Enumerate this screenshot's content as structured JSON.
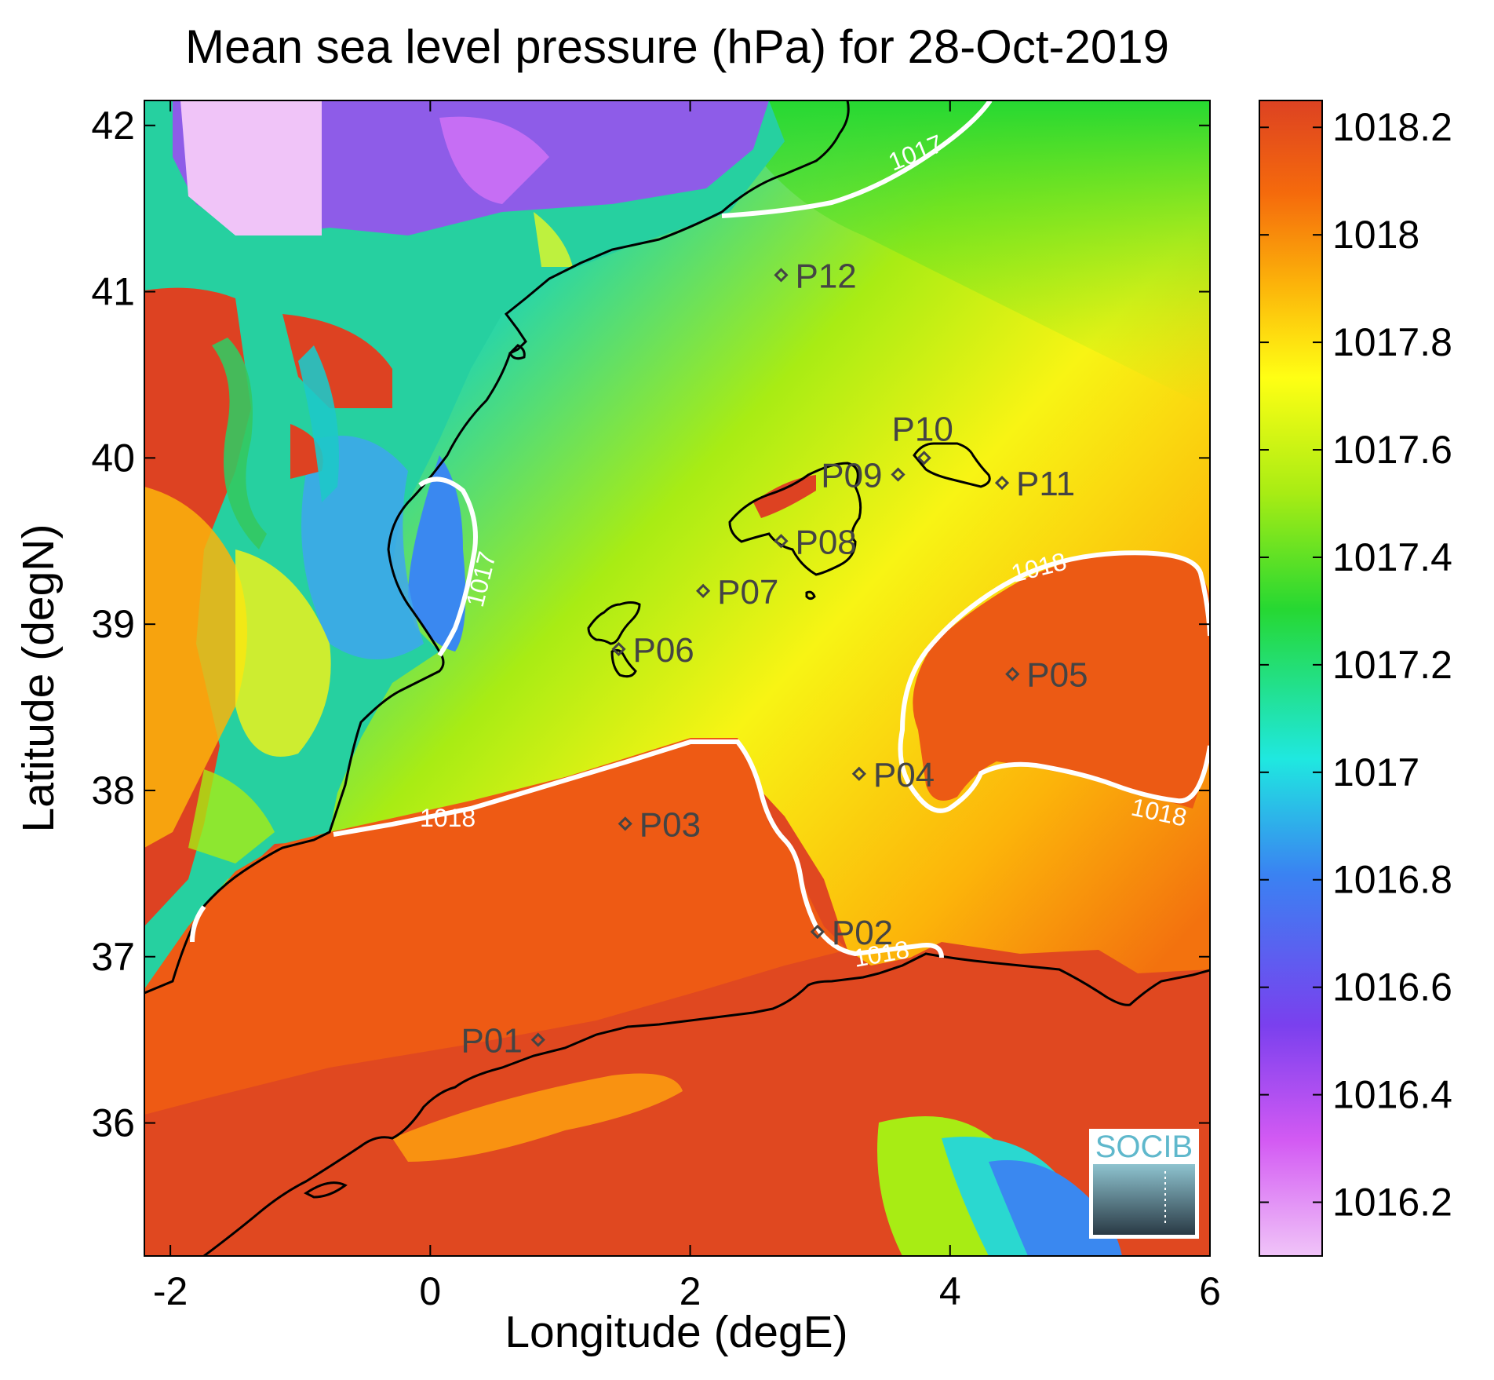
{
  "title": "Mean sea level pressure (hPa) for 28-Oct-2019",
  "xlabel": "Longitude (degE)",
  "ylabel": "Latitude (degN)",
  "x_ticks": [
    "-2",
    "0",
    "2",
    "4",
    "6"
  ],
  "y_ticks": [
    "36",
    "37",
    "38",
    "39",
    "40",
    "41",
    "42"
  ],
  "colorbar": {
    "ticks": [
      "1016.2",
      "1016.4",
      "1016.6",
      "1016.8",
      "1017",
      "1017.2",
      "1017.4",
      "1017.6",
      "1017.8",
      "1018",
      "1018.2"
    ],
    "range": [
      1016.1,
      1018.25
    ],
    "colors": [
      "#f0c4f8",
      "#d35af3",
      "#7a40ee",
      "#3a82f2",
      "#1fe8e0",
      "#26d832",
      "#a8ec14",
      "#ffff14",
      "#fcb40a",
      "#f56a0c",
      "#dd4222"
    ]
  },
  "contour_labels": [
    "1017",
    "1017",
    "1018",
    "1018",
    "1018",
    "1018"
  ],
  "stations": [
    {
      "name": "P01",
      "lon": 0.83,
      "lat": 36.5
    },
    {
      "name": "P02",
      "lon": 2.98,
      "lat": 37.15
    },
    {
      "name": "P03",
      "lon": 1.5,
      "lat": 37.8
    },
    {
      "name": "P04",
      "lon": 3.3,
      "lat": 38.1
    },
    {
      "name": "P05",
      "lon": 4.48,
      "lat": 38.7
    },
    {
      "name": "P06",
      "lon": 1.45,
      "lat": 38.85
    },
    {
      "name": "P07",
      "lon": 2.1,
      "lat": 39.2
    },
    {
      "name": "P08",
      "lon": 2.7,
      "lat": 39.5
    },
    {
      "name": "P09",
      "lon": 3.6,
      "lat": 39.9
    },
    {
      "name": "P10",
      "lon": 3.8,
      "lat": 40.0
    },
    {
      "name": "P11",
      "lon": 4.4,
      "lat": 39.85
    },
    {
      "name": "P12",
      "lon": 2.7,
      "lat": 41.1
    }
  ],
  "logo": "SOCIB"
}
